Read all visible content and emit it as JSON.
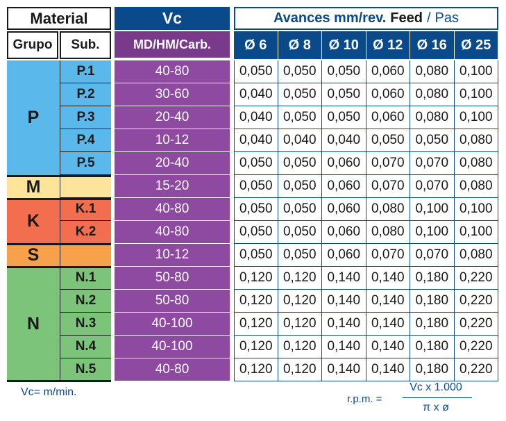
{
  "material": {
    "title": "Material",
    "grupo_label": "Grupo",
    "sub_label": "Sub.",
    "groups": [
      {
        "label": "P",
        "color": "#5bb8ea"
      },
      {
        "label": "M",
        "color": "#fde49b"
      },
      {
        "label": "K",
        "color": "#f26e4f"
      },
      {
        "label": "S",
        "color": "#f7a24a"
      },
      {
        "label": "N",
        "color": "#7cc47a"
      }
    ],
    "subs": [
      "P.1",
      "P.2",
      "P.3",
      "P.4",
      "P.5",
      "",
      "K.1",
      "K.2",
      "",
      "N.1",
      "N.2",
      "N.3",
      "N.4",
      "N.5"
    ]
  },
  "vc": {
    "title": "Vc",
    "subtitle": "MD/HM/Carb.",
    "values": [
      "40-80",
      "30-60",
      "20-40",
      "10-12",
      "20-40",
      "15-20",
      "40-80",
      "40-80",
      "10-12",
      "50-80",
      "50-80",
      "40-100",
      "40-100",
      "40-80"
    ]
  },
  "feed": {
    "title_a": "Avances mm/rev.",
    "title_b": "Feed",
    "title_sep": "/",
    "title_c": "Pas",
    "diameters": [
      "Ø 6",
      "Ø 8",
      "Ø 10",
      "Ø 12",
      "Ø 16",
      "Ø 25"
    ],
    "rows": [
      [
        "0,050",
        "0,050",
        "0,050",
        "0,060",
        "0,080",
        "0,100"
      ],
      [
        "0,040",
        "0,050",
        "0,050",
        "0,060",
        "0,080",
        "0,100"
      ],
      [
        "0,040",
        "0,050",
        "0,050",
        "0,060",
        "0,080",
        "0,100"
      ],
      [
        "0,040",
        "0,040",
        "0,040",
        "0,050",
        "0,050",
        "0,080"
      ],
      [
        "0,050",
        "0,050",
        "0,060",
        "0,070",
        "0,070",
        "0,080"
      ],
      [
        "0,050",
        "0,050",
        "0,060",
        "0,070",
        "0,070",
        "0,080"
      ],
      [
        "0,050",
        "0,050",
        "0,060",
        "0,080",
        "0,100",
        "0,100"
      ],
      [
        "0,050",
        "0,050",
        "0,060",
        "0,080",
        "0,100",
        "0,100"
      ],
      [
        "0,050",
        "0,050",
        "0,060",
        "0,070",
        "0,070",
        "0,080"
      ],
      [
        "0,120",
        "0,120",
        "0,140",
        "0,140",
        "0,180",
        "0,220"
      ],
      [
        "0,120",
        "0,120",
        "0,140",
        "0,140",
        "0,180",
        "0,220"
      ],
      [
        "0,120",
        "0,120",
        "0,140",
        "0,140",
        "0,180",
        "0,220"
      ],
      [
        "0,120",
        "0,120",
        "0,140",
        "0,140",
        "0,180",
        "0,220"
      ],
      [
        "0,120",
        "0,120",
        "0,140",
        "0,140",
        "0,180",
        "0,220"
      ]
    ]
  },
  "footer": {
    "vc_note": "Vc= m/min.",
    "rpm_label": "r.p.m. =",
    "rpm_numerator": "Vc x 1.000",
    "rpm_denominator": "π x ø"
  }
}
